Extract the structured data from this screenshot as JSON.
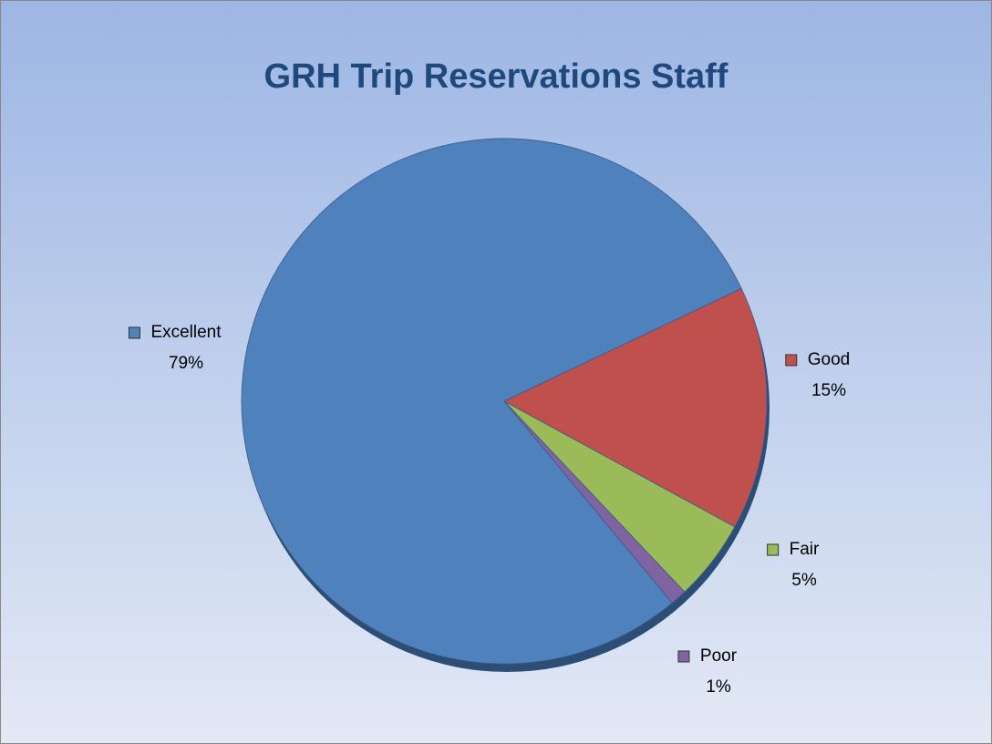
{
  "chart_data": {
    "type": "pie",
    "title": "GRH Trip Reservations Staff",
    "categories": [
      "Excellent",
      "Good",
      "Fair",
      "Poor"
    ],
    "values": [
      79,
      15,
      5,
      1
    ],
    "value_labels": [
      "79%",
      "15%",
      "5%",
      "1%"
    ],
    "colors": [
      "#4f81bd",
      "#c0504d",
      "#9bbb59",
      "#8064a2"
    ]
  }
}
